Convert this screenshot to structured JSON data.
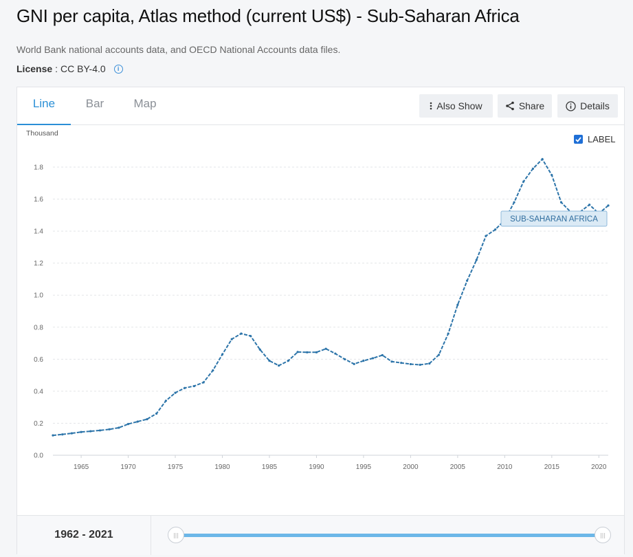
{
  "title": "GNI per capita, Atlas method (current US$) - Sub-Saharan Africa",
  "source": "World Bank national accounts data, and OECD National Accounts data files.",
  "license": {
    "label": "License",
    "separator": ":",
    "value": "CC BY-4.0",
    "info_icon": "info-icon"
  },
  "tabs": [
    {
      "label": "Line",
      "active": true
    },
    {
      "label": "Bar",
      "active": false
    },
    {
      "label": "Map",
      "active": false
    }
  ],
  "actions": {
    "also_show": {
      "label": "Also Show",
      "icon": "kebab-menu-icon"
    },
    "share": {
      "label": "Share",
      "icon": "share-icon"
    },
    "details": {
      "label": "Details",
      "icon": "info-icon"
    }
  },
  "label_toggle": {
    "label": "LABEL",
    "checked": true
  },
  "range": {
    "label": "1962 - 2021",
    "start": 1962,
    "end": 2021
  },
  "colors": {
    "line": "#2c74a9",
    "accent": "#2a8fd6",
    "slider": "#6cb7e8",
    "series_label_bg": "#dbeaf5"
  },
  "chart_data": {
    "type": "line",
    "ylabel": "Thousand",
    "xlabel": "",
    "x": [
      1962,
      1963,
      1964,
      1965,
      1966,
      1967,
      1968,
      1969,
      1970,
      1971,
      1972,
      1973,
      1974,
      1975,
      1976,
      1977,
      1978,
      1979,
      1980,
      1981,
      1982,
      1983,
      1984,
      1985,
      1986,
      1987,
      1988,
      1989,
      1990,
      1991,
      1992,
      1993,
      1994,
      1995,
      1996,
      1997,
      1998,
      1999,
      2000,
      2001,
      2002,
      2003,
      2004,
      2005,
      2006,
      2007,
      2008,
      2009,
      2010,
      2011,
      2012,
      2013,
      2014,
      2015,
      2016,
      2017,
      2018,
      2019,
      2020,
      2021
    ],
    "series": [
      {
        "name": "SUB-SAHARAN AFRICA",
        "values": [
          0.124,
          0.13,
          0.137,
          0.145,
          0.15,
          0.155,
          0.162,
          0.172,
          0.195,
          0.21,
          0.225,
          0.26,
          0.34,
          0.39,
          0.42,
          0.432,
          0.455,
          0.53,
          0.63,
          0.725,
          0.76,
          0.745,
          0.66,
          0.59,
          0.56,
          0.59,
          0.645,
          0.643,
          0.643,
          0.665,
          0.635,
          0.6,
          0.57,
          0.59,
          0.606,
          0.625,
          0.585,
          0.577,
          0.569,
          0.565,
          0.573,
          0.627,
          0.76,
          0.94,
          1.09,
          1.22,
          1.37,
          1.41,
          1.47,
          1.58,
          1.71,
          1.79,
          1.85,
          1.75,
          1.58,
          1.52,
          1.52,
          1.565,
          1.51,
          1.56
        ]
      }
    ],
    "xticks": [
      1965,
      1970,
      1975,
      1980,
      1985,
      1990,
      1995,
      2000,
      2005,
      2010,
      2015,
      2020
    ],
    "yticks": [
      "0.0",
      "0.2",
      "0.4",
      "0.6",
      "0.8",
      "1.0",
      "1.2",
      "1.4",
      "1.6",
      "1.8"
    ],
    "xlim": [
      1962,
      2021
    ],
    "ylim": [
      0,
      1.8
    ],
    "grid": true,
    "series_label": "SUB-SAHARAN AFRICA"
  }
}
